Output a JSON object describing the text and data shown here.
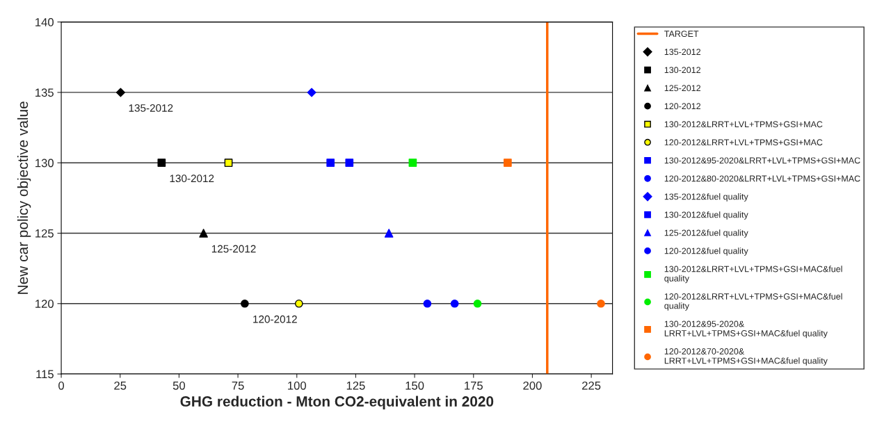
{
  "chart_data": {
    "type": "scatter",
    "xlabel": "GHG reduction - Mton CO2-equivalent in 2020",
    "ylabel": "New car policy objective value",
    "xlim": [
      0,
      234
    ],
    "xticks": [
      0,
      25,
      50,
      75,
      100,
      125,
      150,
      175,
      200,
      225
    ],
    "ylim": [
      115,
      140
    ],
    "yticks": [
      115,
      120,
      125,
      130,
      135,
      140
    ],
    "grid": "y",
    "legend": "right",
    "annotations": [
      {
        "text": "135-2012",
        "x": 25.2,
        "y": 135
      },
      {
        "text": "130-2012",
        "x": 42.6,
        "y": 130
      },
      {
        "text": "125-2012",
        "x": 60.4,
        "y": 125
      },
      {
        "text": "120-2012",
        "x": 77.9,
        "y": 120
      }
    ],
    "series": [
      {
        "name": "TARGET",
        "type": "line",
        "color": "#ff6600",
        "marker": "none",
        "line_style": "solid",
        "x": [
          206.3,
          206.3
        ],
        "values": [
          115,
          140
        ]
      },
      {
        "name": "135-2012",
        "color": "#000000",
        "marker": "diamond",
        "x": [
          25.2
        ],
        "values": [
          135
        ]
      },
      {
        "name": "130-2012",
        "color": "#000000",
        "marker": "square",
        "x": [
          42.6
        ],
        "values": [
          130
        ]
      },
      {
        "name": "125-2012",
        "color": "#000000",
        "marker": "triangle",
        "x": [
          60.4
        ],
        "values": [
          125
        ]
      },
      {
        "name": "120-2012",
        "color": "#000000",
        "marker": "circle",
        "x": [
          77.9
        ],
        "values": [
          120
        ]
      },
      {
        "name": "130-2012&LRRT+LVL+TPMS+GSI+MAC",
        "color": "#ffff00",
        "marker": "square",
        "x": [
          71.0
        ],
        "values": [
          130
        ]
      },
      {
        "name": "120-2012&LRRT+LVL+TPMS+GSI+MAC",
        "color": "#ffff00",
        "marker": "circle",
        "x": [
          100.9
        ],
        "values": [
          120
        ]
      },
      {
        "name": "130-2012&95-2020&LRRT+LVL+TPMS+GSI+MAC",
        "color": "#0000ff",
        "marker": "square",
        "x": [
          114.3
        ],
        "values": [
          130
        ]
      },
      {
        "name": "120-2012&80-2020&LRRT+LVL+TPMS+GSI+MAC",
        "color": "#0000ff",
        "marker": "circle",
        "x": [
          167.0
        ],
        "values": [
          120
        ]
      },
      {
        "name": "135-2012&fuel quality",
        "color": "#0000ff",
        "marker": "diamond",
        "x": [
          106.3
        ],
        "values": [
          135
        ]
      },
      {
        "name": "130-2012&fuel quality",
        "color": "#0000ff",
        "marker": "square",
        "x": [
          122.3
        ],
        "values": [
          130
        ]
      },
      {
        "name": "125-2012&fuel quality",
        "color": "#0000ff",
        "marker": "triangle",
        "x": [
          139.1
        ],
        "values": [
          125
        ]
      },
      {
        "name": "120-2012&fuel quality",
        "color": "#0000ff",
        "marker": "circle",
        "x": [
          155.4
        ],
        "values": [
          120
        ]
      },
      {
        "name": "130-2012&LRRT+LVL+TPMS+GSI+MAC&fuel\nquality",
        "color": "#00ee00",
        "marker": "square",
        "x": [
          149.2
        ],
        "values": [
          130
        ]
      },
      {
        "name": "120-2012&LRRT+LVL+TPMS+GSI+MAC&fuel\nquality",
        "color": "#00ee00",
        "marker": "circle",
        "x": [
          176.7
        ],
        "values": [
          120
        ]
      },
      {
        "name": "130-2012&95-2020&\nLRRT+LVL+TPMS+GSI+MAC&fuel quality",
        "color": "#ff6600",
        "marker": "square",
        "x": [
          189.5
        ],
        "values": [
          130
        ]
      },
      {
        "name": "120-2012&70-2020&\nLRRT+LVL+TPMS+GSI+MAC&fuel quality",
        "color": "#ff6600",
        "marker": "circle",
        "x": [
          229.1
        ],
        "values": [
          120
        ]
      }
    ]
  }
}
